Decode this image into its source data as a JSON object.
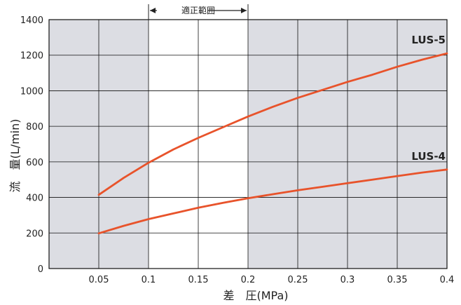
{
  "chart_data": {
    "type": "line",
    "xlabel": "差　圧(MPa)",
    "ylabel": "流　量(L/min)",
    "xlim": [
      0.0,
      0.4
    ],
    "ylim": [
      0,
      1400
    ],
    "x_ticks": [
      {
        "value": 0.05,
        "label": "0.05"
      },
      {
        "value": 0.1,
        "label": "0.1"
      },
      {
        "value": 0.15,
        "label": "0.15"
      },
      {
        "value": 0.2,
        "label": "0.2"
      },
      {
        "value": 0.25,
        "label": "0.25"
      },
      {
        "value": 0.3,
        "label": "0.3"
      },
      {
        "value": 0.35,
        "label": "0.35"
      },
      {
        "value": 0.4,
        "label": "0.4"
      }
    ],
    "y_ticks": [
      {
        "value": 0,
        "label": "0"
      },
      {
        "value": 200,
        "label": "200"
      },
      {
        "value": 400,
        "label": "400"
      },
      {
        "value": 600,
        "label": "600"
      },
      {
        "value": 800,
        "label": "800"
      },
      {
        "value": 1000,
        "label": "1000"
      },
      {
        "value": 1200,
        "label": "1200"
      },
      {
        "value": 1400,
        "label": "1400"
      }
    ],
    "grid": true,
    "proper_range": {
      "label": "適正範囲",
      "from": 0.1,
      "to": 0.2
    },
    "colors": {
      "series": "#e8532b",
      "shaded": "#dcdde3",
      "grid": "#111111"
    },
    "series": [
      {
        "name": "LUS-5",
        "x": [
          0.05,
          0.075,
          0.1,
          0.125,
          0.15,
          0.175,
          0.2,
          0.225,
          0.25,
          0.275,
          0.3,
          0.325,
          0.35,
          0.375,
          0.4
        ],
        "y": [
          415,
          510,
          595,
          670,
          735,
          795,
          855,
          910,
          960,
          1005,
          1050,
          1090,
          1135,
          1175,
          1210
        ]
      },
      {
        "name": "LUS-4",
        "x": [
          0.05,
          0.075,
          0.1,
          0.125,
          0.15,
          0.175,
          0.2,
          0.225,
          0.25,
          0.275,
          0.3,
          0.325,
          0.35,
          0.375,
          0.4
        ],
        "y": [
          198,
          240,
          278,
          310,
          342,
          370,
          395,
          418,
          440,
          460,
          480,
          500,
          520,
          540,
          557
        ]
      }
    ]
  }
}
